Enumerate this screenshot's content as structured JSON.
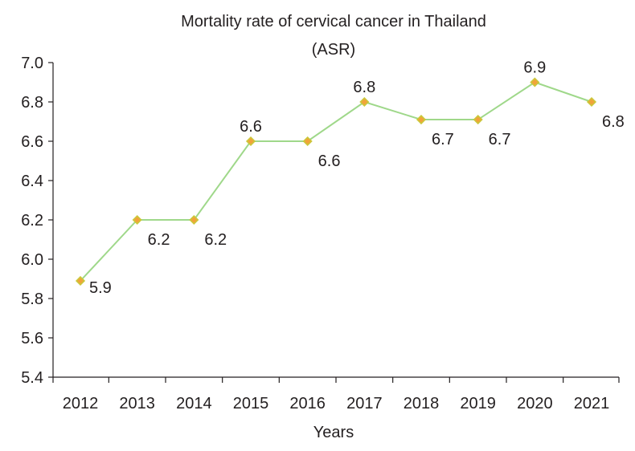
{
  "chart_data": {
    "type": "line",
    "title": "Mortality rate of cervical cancer in Thailand",
    "subtitle": "(ASR)",
    "xlabel": "Years",
    "ylabel": "",
    "categories": [
      "2012",
      "2013",
      "2014",
      "2015",
      "2016",
      "2017",
      "2018",
      "2019",
      "2020",
      "2021"
    ],
    "series": [
      {
        "name": "Mortality rate (ASR)",
        "values": [
          5.89,
          6.2,
          6.2,
          6.6,
          6.6,
          6.8,
          6.71,
          6.71,
          6.9,
          6.8
        ],
        "labels": [
          "5.9",
          "6.2",
          "6.2",
          "6.6",
          "6.6",
          "6.8",
          "6.7",
          "6.7",
          "6.9",
          "6.8"
        ],
        "label_position": [
          "below",
          "below",
          "below",
          "above",
          "below",
          "above",
          "below",
          "below",
          "above",
          "below"
        ]
      }
    ],
    "ylim": [
      5.4,
      7.0
    ],
    "yticks": [
      "7.0",
      "6.8",
      "6.6",
      "6.4",
      "6.2",
      "6.0",
      "5.8",
      "5.6",
      "5.4"
    ],
    "grid": false,
    "legend": "none",
    "colors": {
      "line": "#9fd88a",
      "marker": "#f0a43a",
      "marker_border": "#c9c93a",
      "axis": "#231f20"
    }
  }
}
